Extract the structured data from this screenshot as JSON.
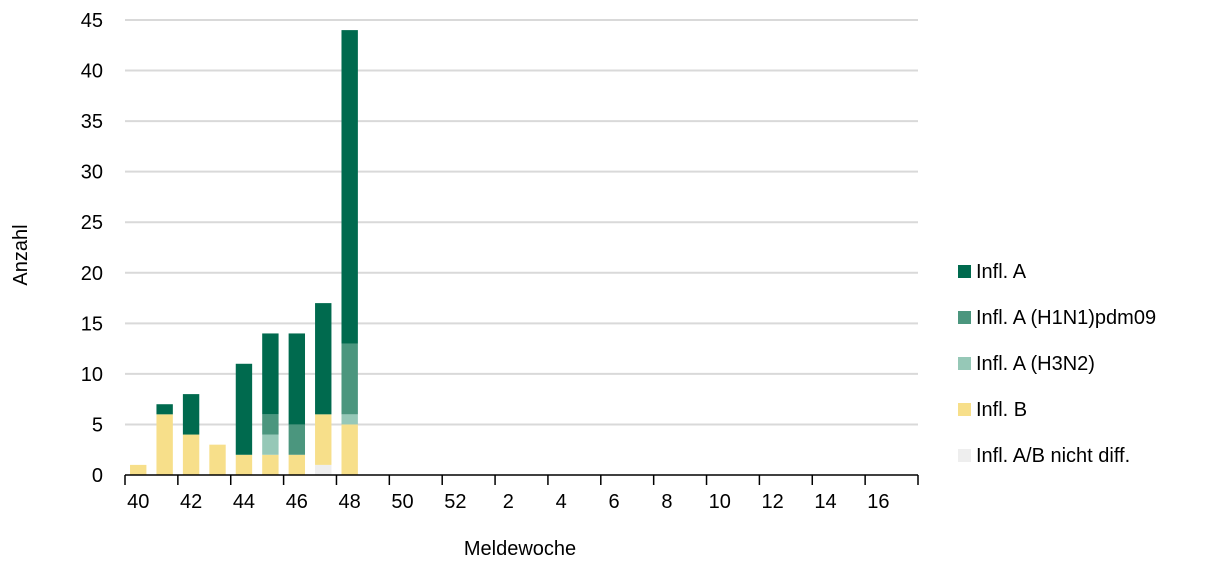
{
  "chart_data": {
    "type": "bar",
    "stacked": true,
    "xlabel": "Meldewoche",
    "ylabel": "Anzahl",
    "ylim": [
      0,
      45
    ],
    "y_ticks": [
      0,
      5,
      10,
      15,
      20,
      25,
      30,
      35,
      40,
      45
    ],
    "grid": "horizontal",
    "legend_position": "right",
    "categories": [
      "40",
      "41",
      "42",
      "43",
      "44",
      "45",
      "46",
      "47",
      "48",
      "49",
      "50",
      "51",
      "52",
      "1",
      "2",
      "3",
      "4",
      "5",
      "6",
      "7",
      "8",
      "9",
      "10",
      "11",
      "12",
      "13",
      "14",
      "15",
      "16",
      "17"
    ],
    "x_tick_labels": [
      "40",
      "42",
      "44",
      "46",
      "48",
      "50",
      "52",
      "2",
      "4",
      "6",
      "8",
      "10",
      "12",
      "14",
      "16"
    ],
    "series": [
      {
        "name": "Infl. A/B nicht diff.",
        "color": "#eeeeee",
        "values": [
          0,
          0,
          0,
          0,
          0,
          0,
          0,
          1,
          0,
          0,
          0,
          0,
          0,
          0,
          0,
          0,
          0,
          0,
          0,
          0,
          0,
          0,
          0,
          0,
          0,
          0,
          0,
          0,
          0,
          0
        ]
      },
      {
        "name": "Infl. B",
        "color": "#f7df8a",
        "values": [
          1,
          6,
          4,
          3,
          2,
          2,
          2,
          5,
          5,
          0,
          0,
          0,
          0,
          0,
          0,
          0,
          0,
          0,
          0,
          0,
          0,
          0,
          0,
          0,
          0,
          0,
          0,
          0,
          0,
          0
        ]
      },
      {
        "name": "Infl. A (H3N2)",
        "color": "#96c8b7",
        "values": [
          0,
          0,
          0,
          0,
          0,
          2,
          0,
          0,
          1,
          0,
          0,
          0,
          0,
          0,
          0,
          0,
          0,
          0,
          0,
          0,
          0,
          0,
          0,
          0,
          0,
          0,
          0,
          0,
          0,
          0
        ]
      },
      {
        "name": "Infl. A (H1N1)pdm09",
        "color": "#4b967e",
        "values": [
          0,
          0,
          0,
          0,
          0,
          2,
          3,
          0,
          7,
          0,
          0,
          0,
          0,
          0,
          0,
          0,
          0,
          0,
          0,
          0,
          0,
          0,
          0,
          0,
          0,
          0,
          0,
          0,
          0,
          0
        ]
      },
      {
        "name": "Infl. A",
        "color": "#006a4e",
        "values": [
          0,
          1,
          4,
          0,
          9,
          8,
          9,
          11,
          31,
          0,
          0,
          0,
          0,
          0,
          0,
          0,
          0,
          0,
          0,
          0,
          0,
          0,
          0,
          0,
          0,
          0,
          0,
          0,
          0,
          0
        ]
      }
    ],
    "legend_order": [
      "Infl. A",
      "Infl. A (H1N1)pdm09",
      "Infl. A (H3N2)",
      "Infl. B",
      "Infl. A/B nicht diff."
    ]
  }
}
